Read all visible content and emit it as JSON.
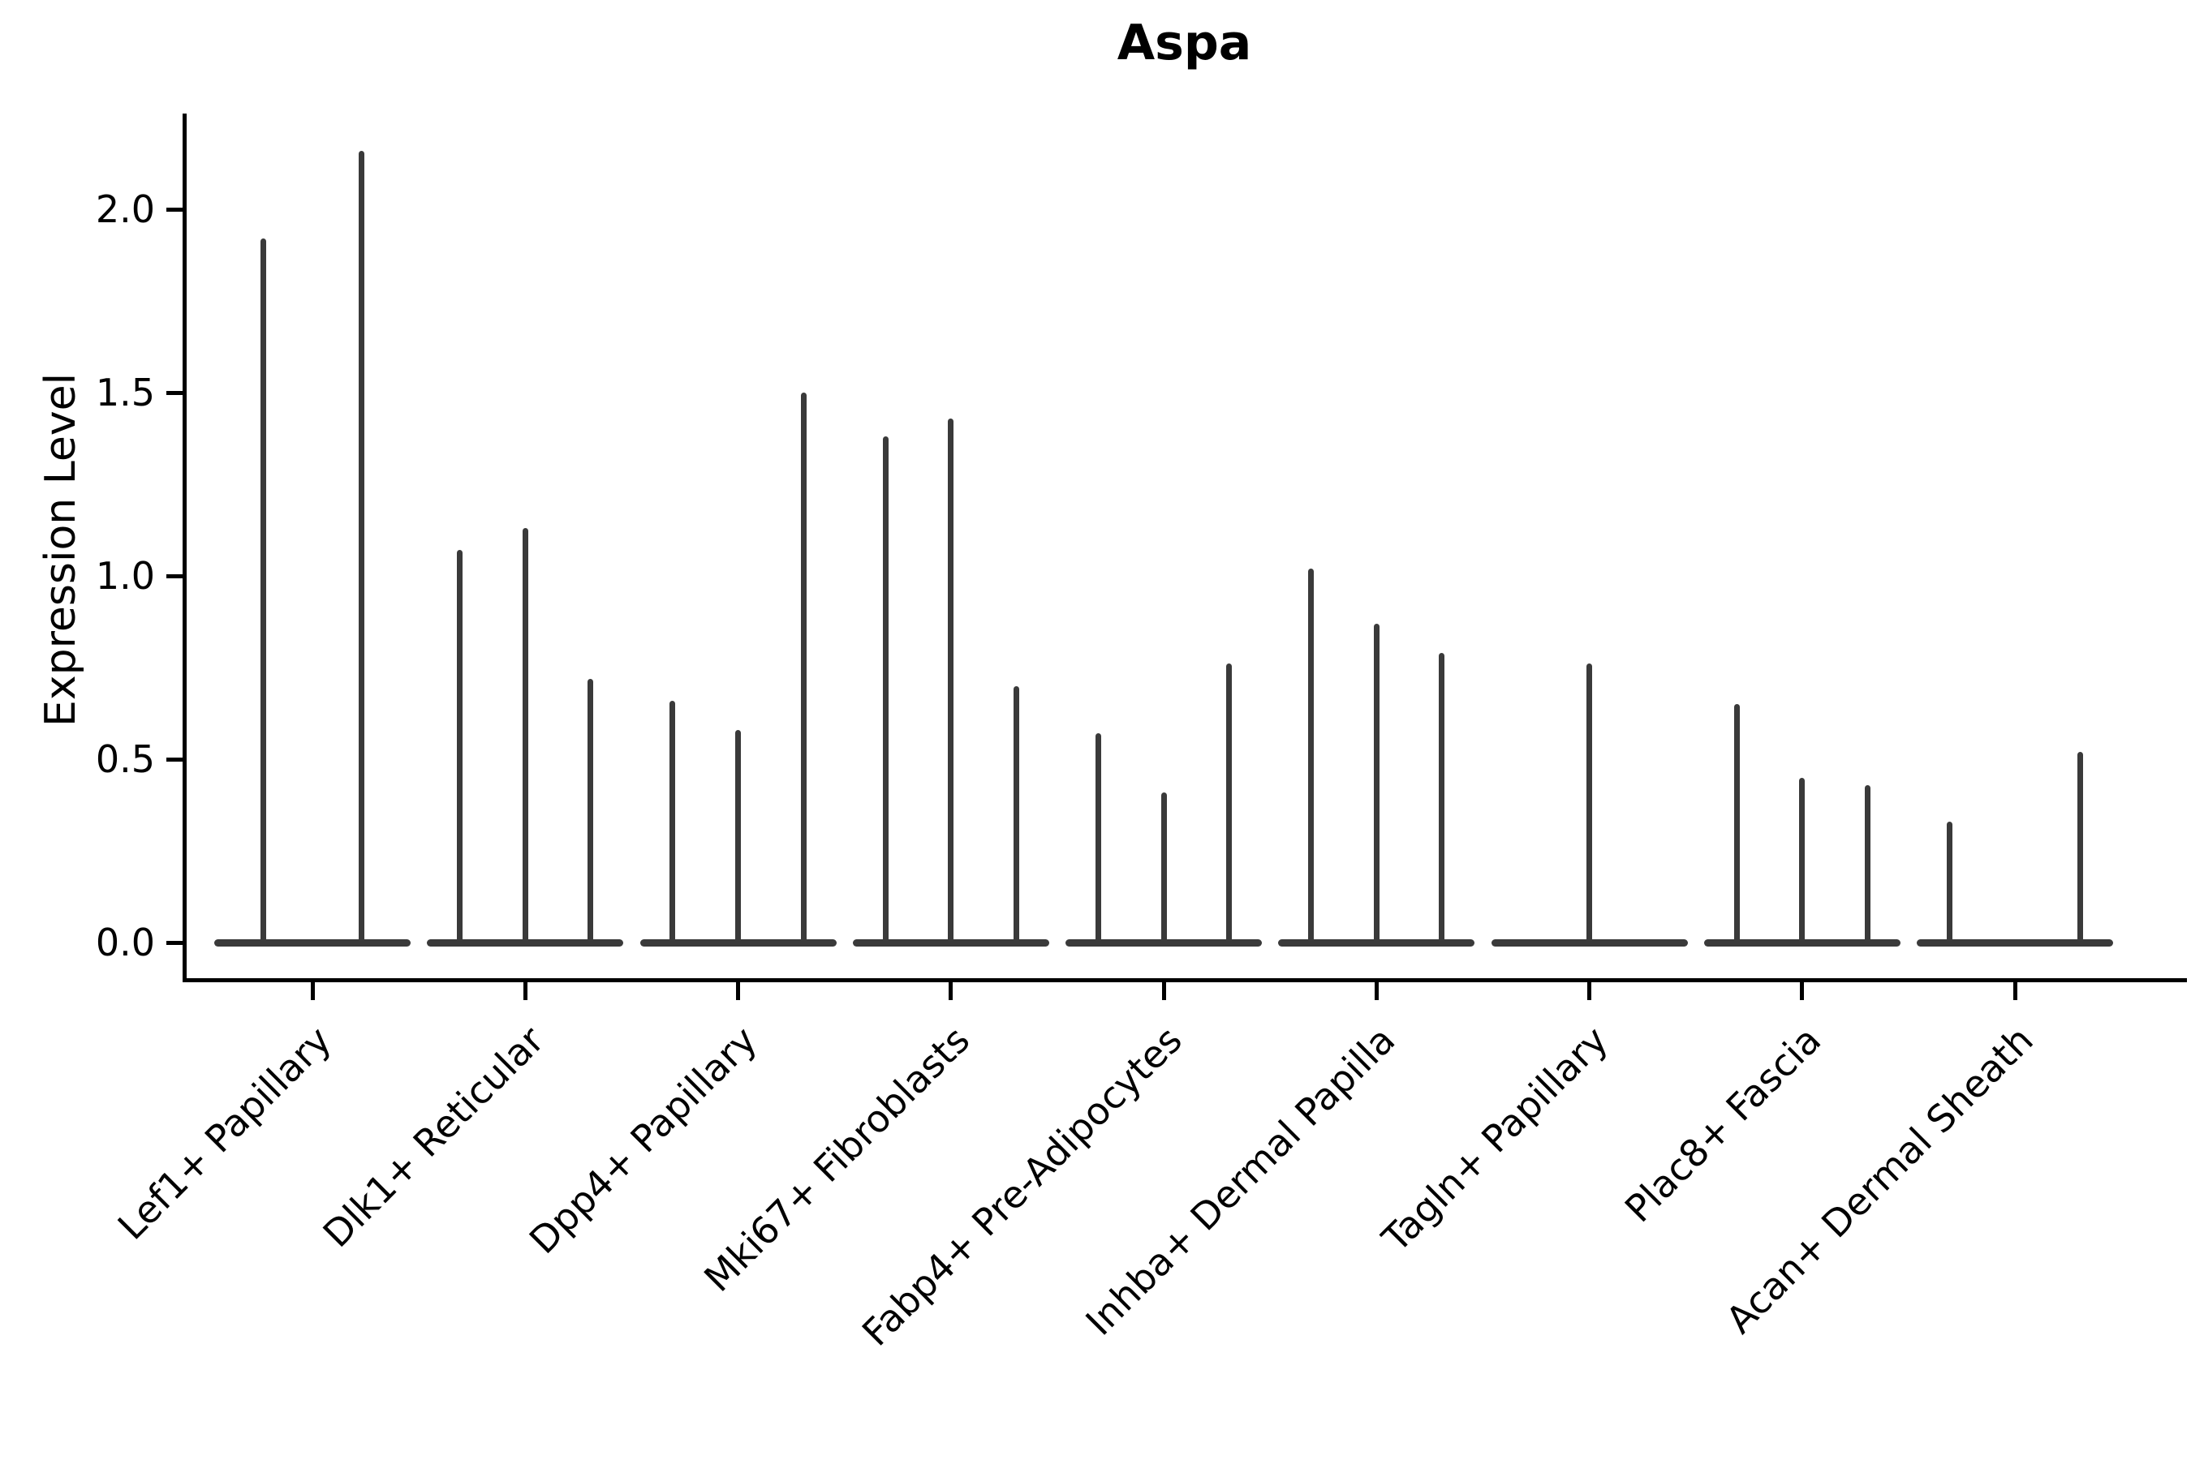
{
  "title": "Aspa",
  "ylabel": "Expression Level",
  "chart_data": {
    "type": "violin",
    "title": "Aspa",
    "xlabel": "",
    "ylabel": "Expression Level",
    "ylim": [
      -0.1,
      2.26
    ],
    "yticks": [
      "0.0",
      "0.5",
      "1.0",
      "1.5",
      "2.0"
    ],
    "grid": false,
    "legend": "none",
    "description": "Single-gene expression violin plot; each cluster shows thin spike violins (max expression) over a flat base at 0.",
    "categories": [
      "Lef1+ Papillary",
      "Dlk1+ Reticular",
      "Dpp4+ Papillary",
      "Mki67+ Fibroblasts",
      "Fabp4+ Pre-Adipocytes",
      "Inhba+ Dermal Papilla",
      "Tagln+ Papillary",
      "Plac8+ Fascia",
      "Acan+ Dermal Sheath"
    ],
    "groups": [
      {
        "label": "Lef1+ Papillary",
        "violin_peaks": [
          1.92,
          2.16
        ]
      },
      {
        "label": "Dlk1+ Reticular",
        "violin_peaks": [
          1.07,
          1.13,
          0.72
        ]
      },
      {
        "label": "Dpp4+ Papillary",
        "violin_peaks": [
          0.66,
          0.58,
          1.5
        ]
      },
      {
        "label": "Mki67+ Fibroblasts",
        "violin_peaks": [
          1.38,
          1.43,
          0.7
        ]
      },
      {
        "label": "Fabp4+ Pre-Adipocytes",
        "violin_peaks": [
          0.57,
          0.41,
          0.76
        ]
      },
      {
        "label": "Inhba+ Dermal Papilla",
        "violin_peaks": [
          1.02,
          0.87,
          0.79
        ]
      },
      {
        "label": "Tagln+ Papillary",
        "violin_peaks": [
          0.0,
          0.76,
          0.0
        ]
      },
      {
        "label": "Plac8+ Fascia",
        "violin_peaks": [
          0.65,
          0.45,
          0.43
        ]
      },
      {
        "label": "Acan+ Dermal Sheath",
        "violin_peaks": [
          0.33,
          0.0,
          0.52
        ]
      }
    ]
  }
}
